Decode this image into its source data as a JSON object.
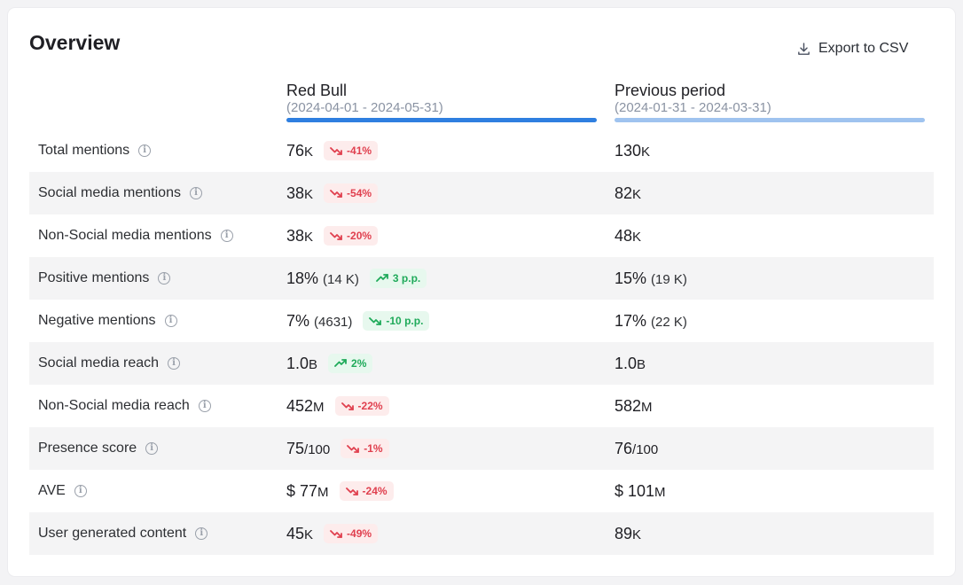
{
  "header": {
    "title": "Overview",
    "export_label": "Export to CSV"
  },
  "columns": {
    "current": {
      "name": "Red Bull",
      "period": "(2024-04-01 - 2024-05-31)",
      "color": "#2f7fe0"
    },
    "previous": {
      "name": "Previous period",
      "period": "(2024-01-31 - 2024-03-31)",
      "color": "#9fc3ef"
    }
  },
  "rows": [
    {
      "label": "Total mentions",
      "cur": "76",
      "cur_unit": "K",
      "cur_sub": "",
      "change": "-41%",
      "trend": "down",
      "prev": "130",
      "prev_unit": "K",
      "prev_sub": ""
    },
    {
      "label": "Social media mentions",
      "cur": "38",
      "cur_unit": "K",
      "cur_sub": "",
      "change": "-54%",
      "trend": "down",
      "prev": "82",
      "prev_unit": "K",
      "prev_sub": ""
    },
    {
      "label": "Non-Social media mentions",
      "cur": "38",
      "cur_unit": "K",
      "cur_sub": "",
      "change": "-20%",
      "trend": "down",
      "prev": "48",
      "prev_unit": "K",
      "prev_sub": ""
    },
    {
      "label": "Positive mentions",
      "cur": "18%",
      "cur_unit": "",
      "cur_sub": "(14 K)",
      "change": "3 p.p.",
      "trend": "up",
      "prev": "15%",
      "prev_unit": "",
      "prev_sub": "(19 K)"
    },
    {
      "label": "Negative mentions",
      "cur": "7%",
      "cur_unit": "",
      "cur_sub": "(4631)",
      "change": "-10 p.p.",
      "trend": "good-down",
      "prev": "17%",
      "prev_unit": "",
      "prev_sub": "(22 K)"
    },
    {
      "label": "Social media reach",
      "cur": "1.0",
      "cur_unit": "B",
      "cur_sub": "",
      "change": "2%",
      "trend": "up",
      "prev": "1.0",
      "prev_unit": "B",
      "prev_sub": ""
    },
    {
      "label": "Non-Social media reach",
      "cur": "452",
      "cur_unit": "M",
      "cur_sub": "",
      "change": "-22%",
      "trend": "down",
      "prev": "582",
      "prev_unit": "M",
      "prev_sub": ""
    },
    {
      "label": "Presence score",
      "cur": "75",
      "cur_unit": "/100",
      "cur_sub": "",
      "change": "-1%",
      "trend": "down",
      "prev": "76",
      "prev_unit": "/100",
      "prev_sub": ""
    },
    {
      "label": "AVE",
      "cur": "$ 77",
      "cur_unit": "M",
      "cur_sub": "",
      "change": "-24%",
      "trend": "down",
      "prev": "$ 101",
      "prev_unit": "M",
      "prev_sub": ""
    },
    {
      "label": "User generated content",
      "cur": "45",
      "cur_unit": "K",
      "cur_sub": "",
      "change": "-49%",
      "trend": "down",
      "prev": "89",
      "prev_unit": "K",
      "prev_sub": ""
    }
  ],
  "icons": {
    "export": "download-icon",
    "info": "info-icon",
    "trend_down": "trending-down-icon",
    "trend_up": "trending-up-icon"
  }
}
